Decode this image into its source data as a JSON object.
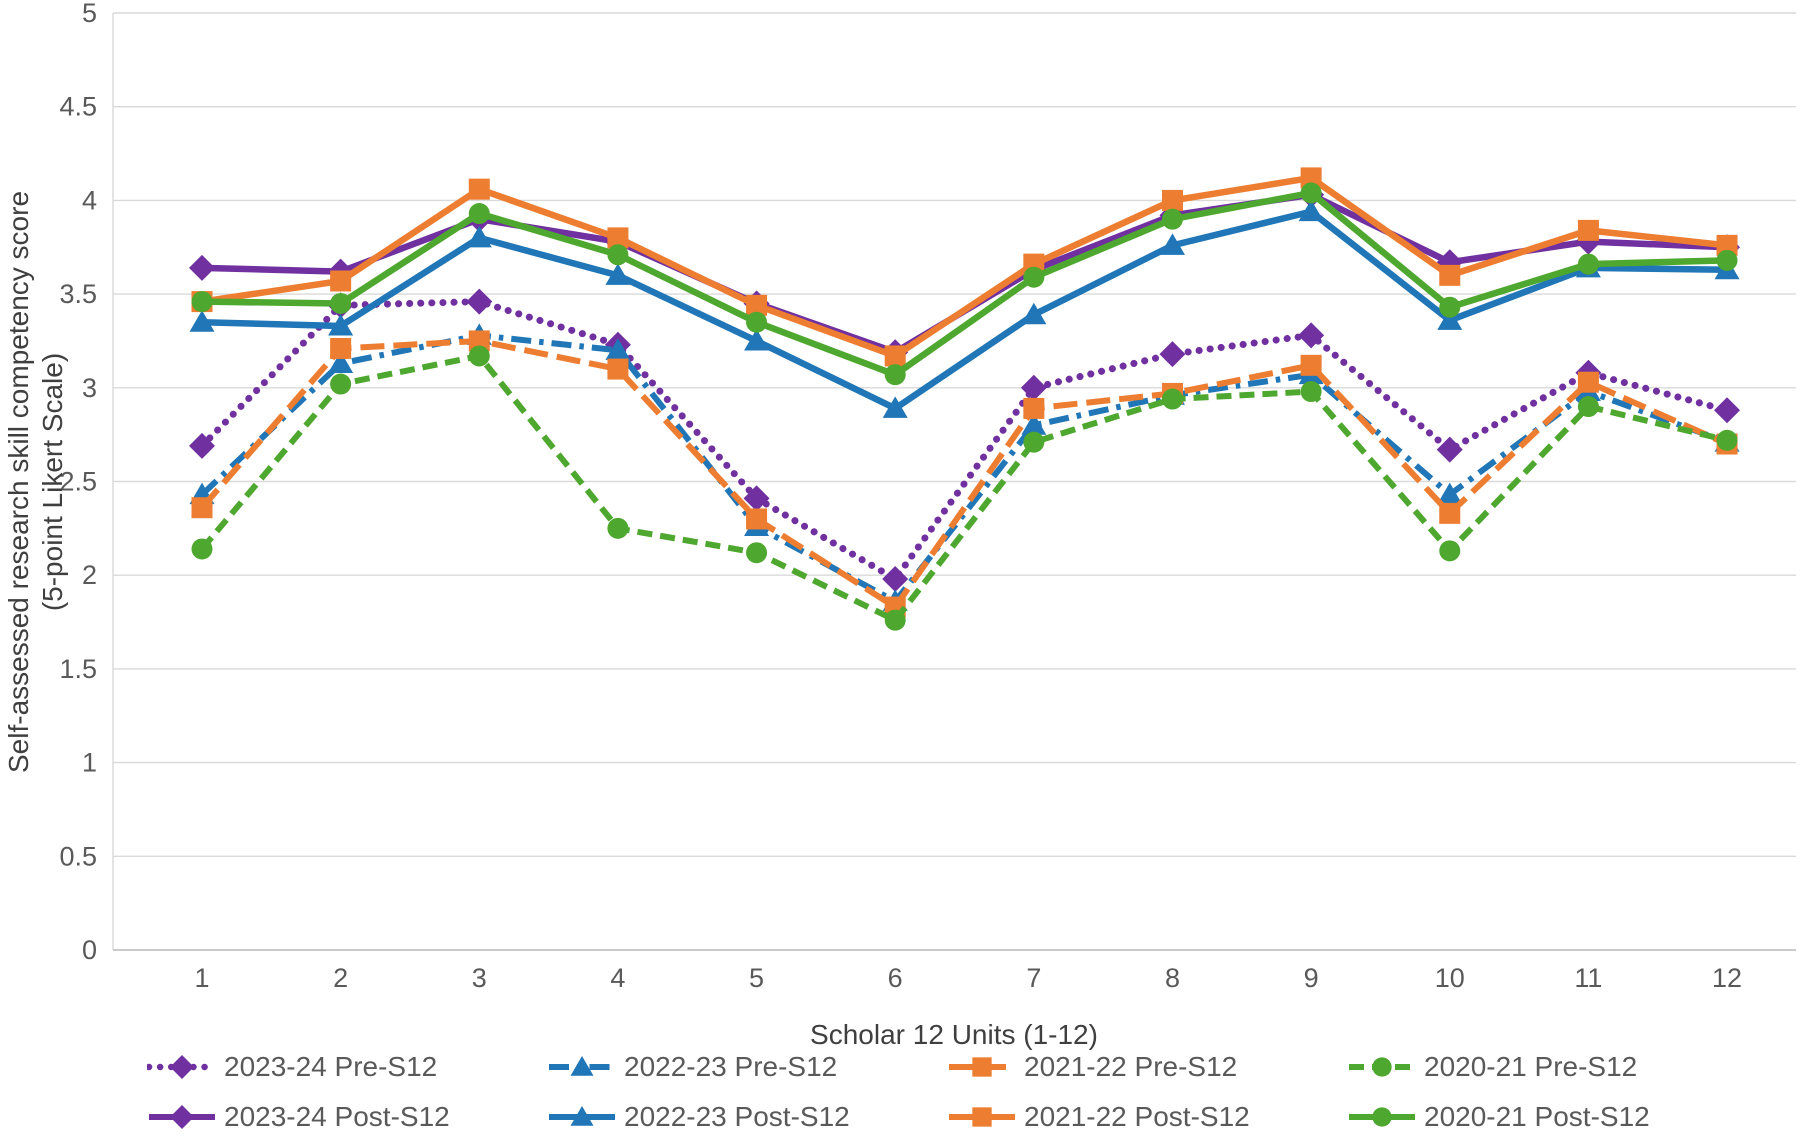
{
  "chart_data": {
    "type": "line",
    "title": "",
    "x": [
      "1",
      "2",
      "3",
      "4",
      "5",
      "6",
      "7",
      "8",
      "9",
      "10",
      "11",
      "12"
    ],
    "xlabel": "Scholar 12 Units (1-12)",
    "ylabel_line1": "Self-assessed research skill competency score",
    "ylabel_line2": "(5-point Likert Scale)",
    "ylim": [
      0,
      5
    ],
    "ytick_values": [
      0,
      0.5,
      1,
      1.5,
      2,
      2.5,
      3,
      3.5,
      4,
      4.5,
      5
    ],
    "yticks": [
      "0",
      "0.5",
      "1",
      "1.5",
      "2",
      "2.5",
      "3",
      "3.5",
      "4",
      "4.5",
      "5"
    ],
    "grid": true,
    "legend_position": "bottom",
    "colors": {
      "purple": "#7030A0",
      "blue": "#2076B6",
      "orange": "#ED7D31",
      "green": "#4EA72E",
      "gridline": "#D9D9D9",
      "axis_line": "#BFBFBF",
      "tick_text": "#595959",
      "title_text": "#3F3F3F"
    },
    "series": [
      {
        "name": "2023-24 Pre-S12",
        "color": "#7030A0",
        "dash": "dotted",
        "marker": "diamond",
        "values": [
          2.69,
          3.44,
          3.46,
          3.23,
          2.41,
          1.98,
          3.0,
          3.18,
          3.28,
          2.67,
          3.08,
          2.88
        ]
      },
      {
        "name": "2022-23 Pre-S12",
        "color": "#2076B6",
        "dash": "dashdot",
        "marker": "triangle",
        "values": [
          2.43,
          3.13,
          3.28,
          3.2,
          2.26,
          1.86,
          2.8,
          2.96,
          3.07,
          2.43,
          2.98,
          2.71
        ]
      },
      {
        "name": "2021-22 Pre-S12",
        "color": "#ED7D31",
        "dash": "longdash",
        "marker": "square",
        "values": [
          2.36,
          3.21,
          3.25,
          3.1,
          2.3,
          1.83,
          2.89,
          2.97,
          3.12,
          2.33,
          3.03,
          2.7
        ]
      },
      {
        "name": "2020-21 Pre-S12",
        "color": "#4EA72E",
        "dash": "dash",
        "marker": "circle",
        "values": [
          2.14,
          3.02,
          3.17,
          2.25,
          2.12,
          1.76,
          2.71,
          2.94,
          2.98,
          2.13,
          2.9,
          2.72
        ]
      },
      {
        "name": "2023-24 Post-S12",
        "color": "#7030A0",
        "dash": "solid",
        "marker": "diamond",
        "values": [
          3.64,
          3.62,
          3.9,
          3.78,
          3.45,
          3.19,
          3.63,
          3.92,
          4.03,
          3.67,
          3.78,
          3.75
        ]
      },
      {
        "name": "2022-23 Post-S12",
        "color": "#2076B6",
        "dash": "solid",
        "marker": "triangle",
        "values": [
          3.35,
          3.33,
          3.8,
          3.6,
          3.25,
          2.89,
          3.39,
          3.76,
          3.94,
          3.36,
          3.64,
          3.63
        ]
      },
      {
        "name": "2021-22 Post-S12",
        "color": "#ED7D31",
        "dash": "solid",
        "marker": "square",
        "values": [
          3.46,
          3.57,
          4.06,
          3.8,
          3.44,
          3.17,
          3.66,
          4.0,
          4.12,
          3.6,
          3.84,
          3.76
        ]
      },
      {
        "name": "2020-21 Post-S12",
        "color": "#4EA72E",
        "dash": "solid",
        "marker": "circle",
        "values": [
          3.46,
          3.45,
          3.93,
          3.71,
          3.35,
          3.07,
          3.59,
          3.9,
          4.04,
          3.43,
          3.66,
          3.68
        ]
      }
    ],
    "legend_rows": [
      [
        0,
        1,
        2,
        3
      ],
      [
        4,
        5,
        6,
        7
      ]
    ]
  }
}
